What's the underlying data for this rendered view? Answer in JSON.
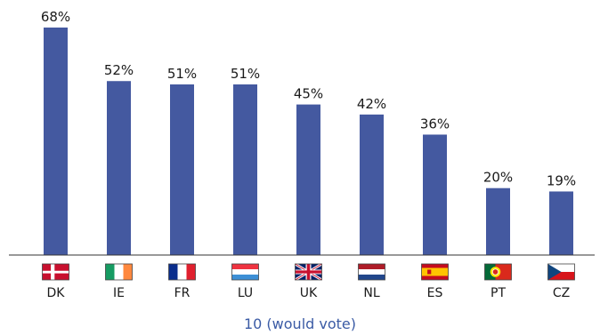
{
  "chart_data": {
    "type": "bar",
    "categories": [
      "DK",
      "IE",
      "FR",
      "LU",
      "UK",
      "NL",
      "ES",
      "PT",
      "CZ"
    ],
    "values": [
      68,
      52,
      51,
      51,
      45,
      42,
      36,
      20,
      19
    ],
    "value_labels": [
      "68%",
      "52%",
      "51%",
      "51%",
      "45%",
      "42%",
      "36%",
      "20%",
      "19%"
    ],
    "xlabel": "10 (would vote)",
    "ylabel": "",
    "ylim": [
      0,
      68
    ],
    "grid": false,
    "bar_color": "#4459a0",
    "category_icons": [
      "flag-dk-icon",
      "flag-ie-icon",
      "flag-fr-icon",
      "flag-lu-icon",
      "flag-uk-icon",
      "flag-nl-icon",
      "flag-es-icon",
      "flag-pt-icon",
      "flag-cz-icon"
    ]
  }
}
